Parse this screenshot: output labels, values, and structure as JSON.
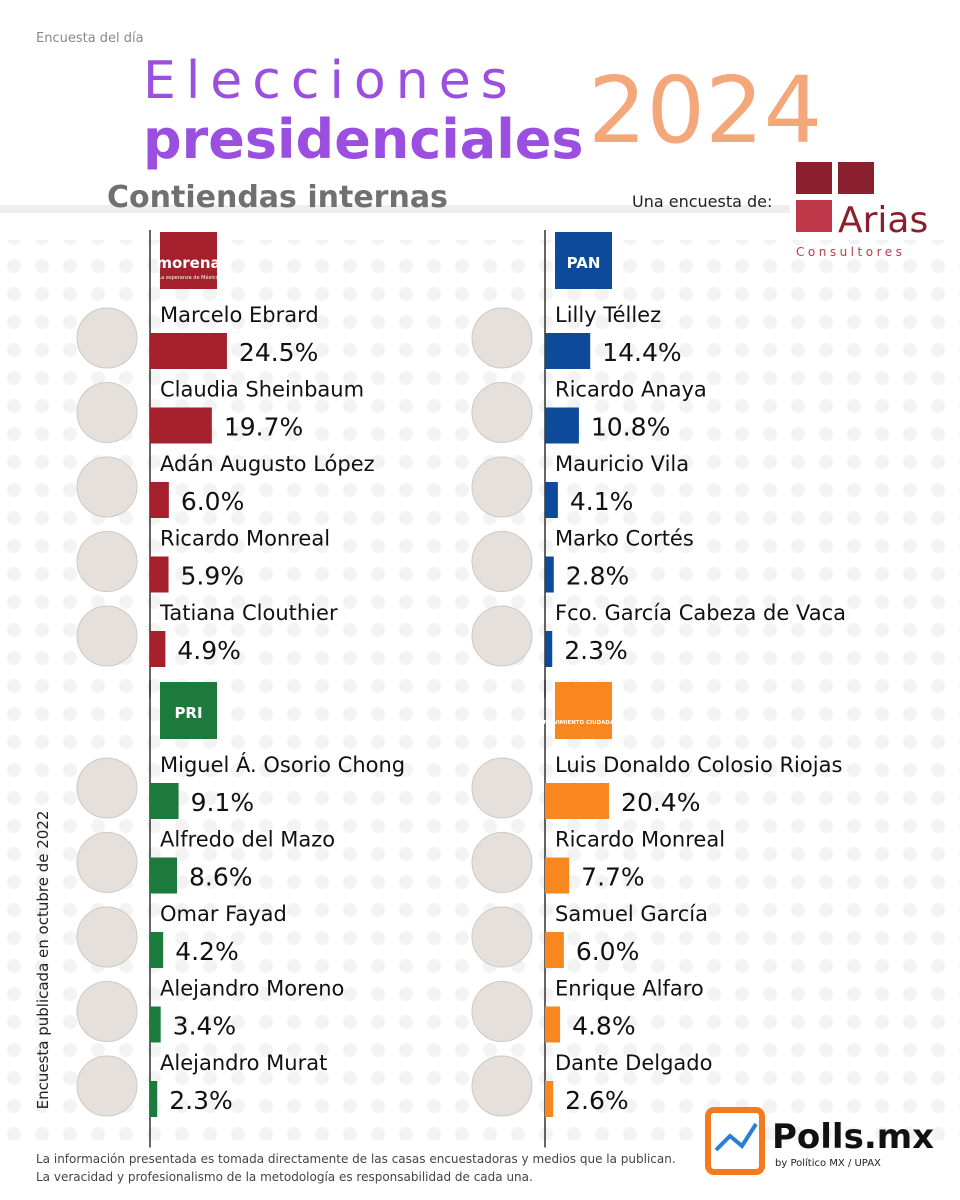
{
  "header": {
    "kicker": "Encuesta del día",
    "title_line1": "Elecciones",
    "title_line2": "presidenciales",
    "year": "2024",
    "subtitle": "Contiendas internas",
    "sponsor_label": "Una encuesta de:",
    "sponsor_name": "Arias",
    "sponsor_sub": "Consultores"
  },
  "chart_data": [
    {
      "type": "bar",
      "orientation": "horizontal",
      "logo": "morena",
      "logo_sub": "La esperanza de México",
      "color": "#a3202c",
      "categories": [
        "Marcelo Ebrard",
        "Claudia Sheinbaum",
        "Adán Augusto López",
        "Ricardo Monreal",
        "Tatiana Clouthier"
      ],
      "values": [
        24.5,
        19.7,
        6.0,
        5.9,
        4.9
      ],
      "value_labels": [
        "24.5%",
        "19.7%",
        "6.0%",
        "5.9%",
        "4.9%"
      ]
    },
    {
      "type": "bar",
      "orientation": "horizontal",
      "logo": "PAN",
      "color": "#0d4a9a",
      "categories": [
        "Lilly Téllez",
        "Ricardo Anaya",
        "Mauricio Vila",
        "Marko Cortés",
        "Fco. García Cabeza de Vaca"
      ],
      "values": [
        14.4,
        10.8,
        4.1,
        2.8,
        2.3
      ],
      "value_labels": [
        "14.4%",
        "10.8%",
        "4.1%",
        "2.8%",
        "2.3%"
      ]
    },
    {
      "type": "bar",
      "orientation": "horizontal",
      "logo": "PRI",
      "color": "#1b7a3c",
      "categories": [
        "Miguel Á. Osorio Chong",
        "Alfredo del Mazo",
        "Omar Fayad",
        "Alejandro Moreno",
        "Alejandro Murat"
      ],
      "values": [
        9.1,
        8.6,
        4.2,
        3.4,
        2.3
      ],
      "value_labels": [
        "9.1%",
        "8.6%",
        "4.2%",
        "3.4%",
        "2.3%"
      ]
    },
    {
      "type": "bar",
      "orientation": "horizontal",
      "logo": "MOVIMIENTO CIUDADANO",
      "color": "#f7871e",
      "categories": [
        "Luis Donaldo Colosio Riojas",
        "Ricardo Monreal",
        "Samuel García",
        "Enrique Alfaro",
        "Dante Delgado"
      ],
      "values": [
        20.4,
        7.7,
        6.0,
        4.8,
        2.6
      ],
      "value_labels": [
        "20.4%",
        "7.7%",
        "6.0%",
        "4.8%",
        "2.6%"
      ]
    }
  ],
  "side_note": "Encuesta publicada en octubre de 2022",
  "footer": {
    "line1": "La información presentada es tomada directamente de las casas encuestadoras y medios que la publican.",
    "line2": "La veracidad y profesionalismo de la metodología es responsabilidad de cada una.",
    "brand": "Polls.mx",
    "brand_sub": "by Político MX / UPAX"
  }
}
